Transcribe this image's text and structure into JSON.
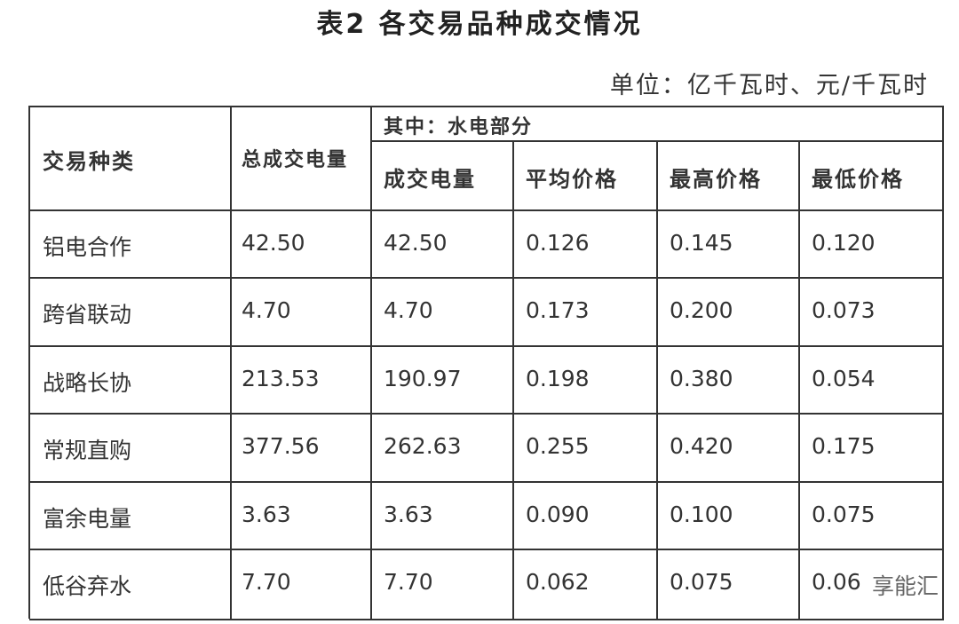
{
  "title": "表2  各交易品种成交情况",
  "unit": "单位：亿千瓦时、元/千瓦时",
  "headers": {
    "type": "交易种类",
    "total": "总成交电量",
    "group": "其中：水电部分",
    "sub": [
      "成交电量",
      "平均价格",
      "最高价格",
      "最低价格"
    ]
  },
  "rows": [
    [
      "铝电合作",
      "42.50",
      "42.50",
      "0.126",
      "0.145",
      "0.120"
    ],
    [
      "跨省联动",
      "4.70",
      "4.70",
      "0.173",
      "0.200",
      "0.073"
    ],
    [
      "战略长协",
      "213.53",
      "190.97",
      "0.198",
      "0.380",
      "0.054"
    ],
    [
      "常规直购",
      "377.56",
      "262.63",
      "0.255",
      "0.420",
      "0.175"
    ],
    [
      "富余电量",
      "3.63",
      "3.63",
      "0.090",
      "0.100",
      "0.075"
    ],
    [
      "低谷弃水",
      "7.70",
      "7.70",
      "0.062",
      "0.075",
      "0.06"
    ]
  ],
  "watermark": "享能汇"
}
